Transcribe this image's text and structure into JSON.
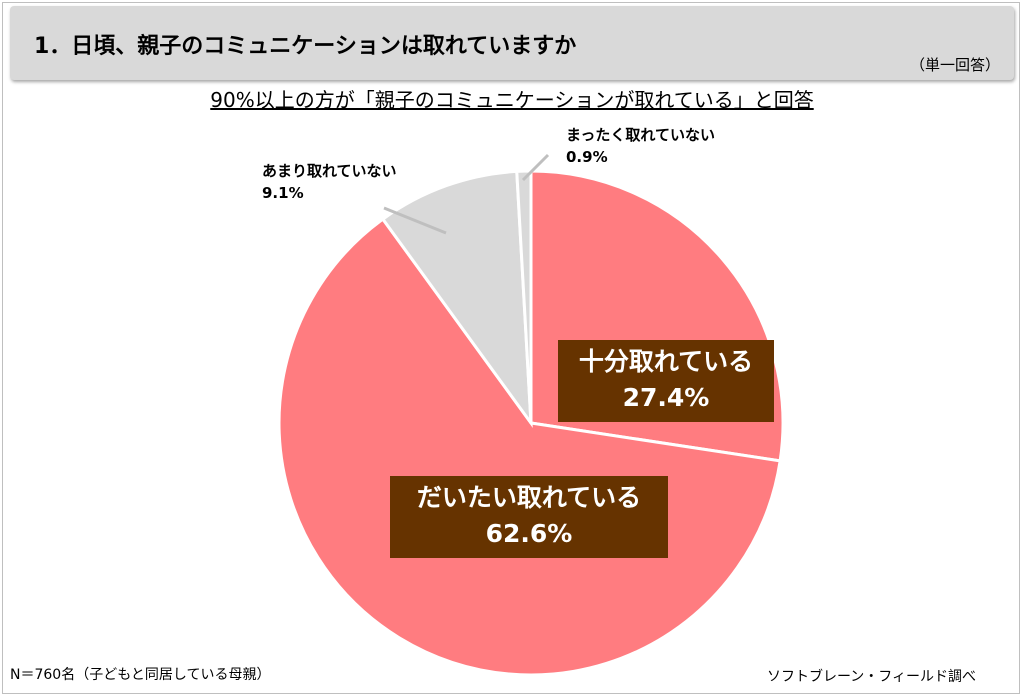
{
  "header": {
    "title": "1．日頃、親子のコミュニケーションは取れていますか",
    "note": "（単一回答）"
  },
  "subtitle": "90%以上の方が「親子のコミュニケーションが取れている」と回答",
  "chart_data": {
    "type": "pie",
    "start_angle_deg": 0,
    "direction": "clockwise",
    "slices": [
      {
        "label": "十分取れている",
        "value": 27.4,
        "value_label": "27.4%",
        "color": "#ff7c80"
      },
      {
        "label": "だいたい取れている",
        "value": 62.6,
        "value_label": "62.6%",
        "color": "#ff7c80"
      },
      {
        "label": "あまり取れていない",
        "value": 9.1,
        "value_label": "9.1%",
        "color": "#d9d9d9"
      },
      {
        "label": "まったく取れていない",
        "value": 0.9,
        "value_label": "0.9%",
        "color": "#d9d9d9"
      }
    ],
    "label_box_color": "#663300",
    "slice_border_color": "#ffffff",
    "leader_line_color": "#bfbfbf"
  },
  "footer": {
    "sample": "N＝760名（子どもと同居している母親）",
    "source": "ソフトブレーン・フィールド調べ"
  }
}
